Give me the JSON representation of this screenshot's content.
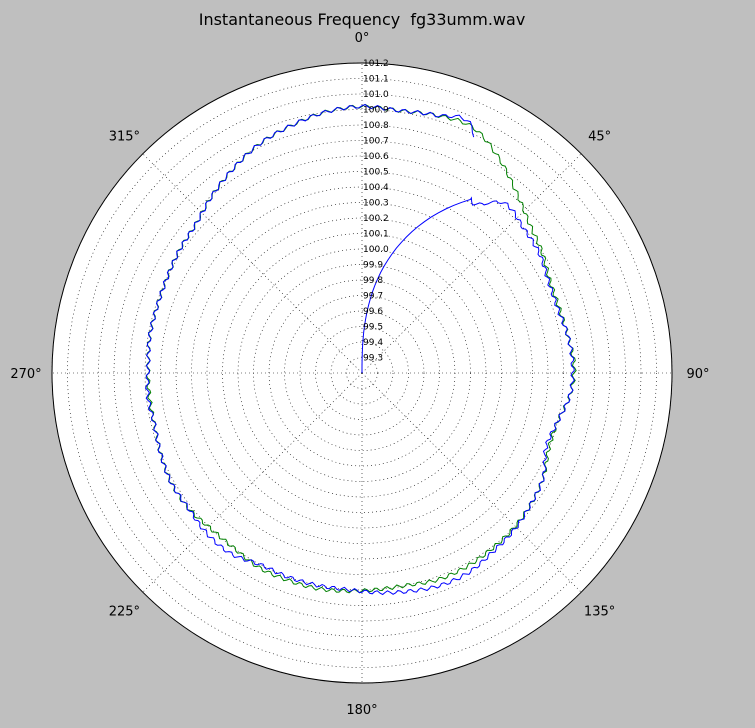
{
  "chart_data": {
    "type": "line",
    "projection": "polar",
    "title": "Instantaneous Frequency  fg33umm.wav",
    "theta_direction": "clockwise",
    "theta_zero": "top",
    "angle_ticks": [
      "0°",
      "45°",
      "90°",
      "135°",
      "180°",
      "225°",
      "270°",
      "315°"
    ],
    "angle_tick_values_deg": [
      0,
      45,
      90,
      135,
      180,
      225,
      270,
      315
    ],
    "radial_ticks": [
      "99.3",
      "99.4",
      "99.5",
      "99.6",
      "99.7",
      "99.8",
      "99.9",
      "100.0",
      "100.1",
      "100.2",
      "100.3",
      "100.4",
      "100.5",
      "100.6",
      "100.7",
      "100.8",
      "100.9",
      "101.0",
      "101.1",
      "101.2"
    ],
    "rlim": [
      99.2,
      101.2
    ],
    "grid": true,
    "series": [
      {
        "color": "#008000",
        "theta_deg": [
          0,
          8,
          16,
          24,
          32,
          40,
          48,
          56,
          64,
          72,
          80,
          88,
          96,
          104,
          112,
          120,
          128,
          136,
          144,
          152,
          160,
          168,
          176,
          184,
          192,
          200,
          208,
          216,
          224,
          232,
          240,
          248,
          256,
          264,
          272,
          280,
          288,
          296,
          304,
          312,
          320,
          328,
          336,
          344,
          352,
          360
        ],
        "r": [
          100.92,
          100.91,
          100.93,
          100.94,
          100.85,
          100.74,
          100.65,
          100.6,
          100.55,
          100.54,
          100.55,
          100.57,
          100.55,
          100.5,
          100.5,
          100.55,
          100.58,
          100.6,
          100.61,
          100.62,
          100.62,
          100.6,
          100.6,
          100.61,
          100.62,
          100.62,
          100.62,
          100.6,
          100.6,
          100.62,
          100.62,
          100.6,
          100.58,
          100.58,
          100.58,
          100.59,
          100.59,
          100.6,
          100.62,
          100.64,
          100.7,
          100.76,
          100.82,
          100.86,
          100.9,
          100.92
        ]
      },
      {
        "color": "#0000ff",
        "theta_deg": [
          0,
          8,
          16,
          24,
          32,
          40,
          48,
          56,
          64,
          72,
          80,
          88,
          96,
          104,
          112,
          120,
          128,
          136,
          144,
          152,
          160,
          168,
          176,
          184,
          192,
          200,
          208,
          216,
          224,
          232,
          240,
          248,
          256,
          264,
          272,
          280,
          288,
          296,
          304,
          312,
          320,
          328,
          336,
          344,
          352,
          360
        ],
        "r": [
          100.92,
          100.91,
          100.93,
          100.94,
          100.52,
          100.63,
          100.6,
          100.58,
          100.54,
          100.53,
          100.55,
          100.56,
          100.55,
          100.5,
          100.48,
          100.55,
          100.58,
          100.61,
          100.63,
          100.66,
          100.66,
          100.64,
          100.62,
          100.6,
          100.6,
          100.6,
          100.6,
          100.64,
          100.64,
          100.62,
          100.62,
          100.6,
          100.58,
          100.59,
          100.58,
          100.59,
          100.59,
          100.6,
          100.62,
          100.64,
          100.7,
          100.76,
          100.82,
          100.86,
          100.9,
          100.92
        ],
        "leading_segment": {
          "from_r": 99.2,
          "from_theta_deg": 0,
          "to_r": 100.52,
          "to_theta_deg": 32
        }
      }
    ]
  }
}
